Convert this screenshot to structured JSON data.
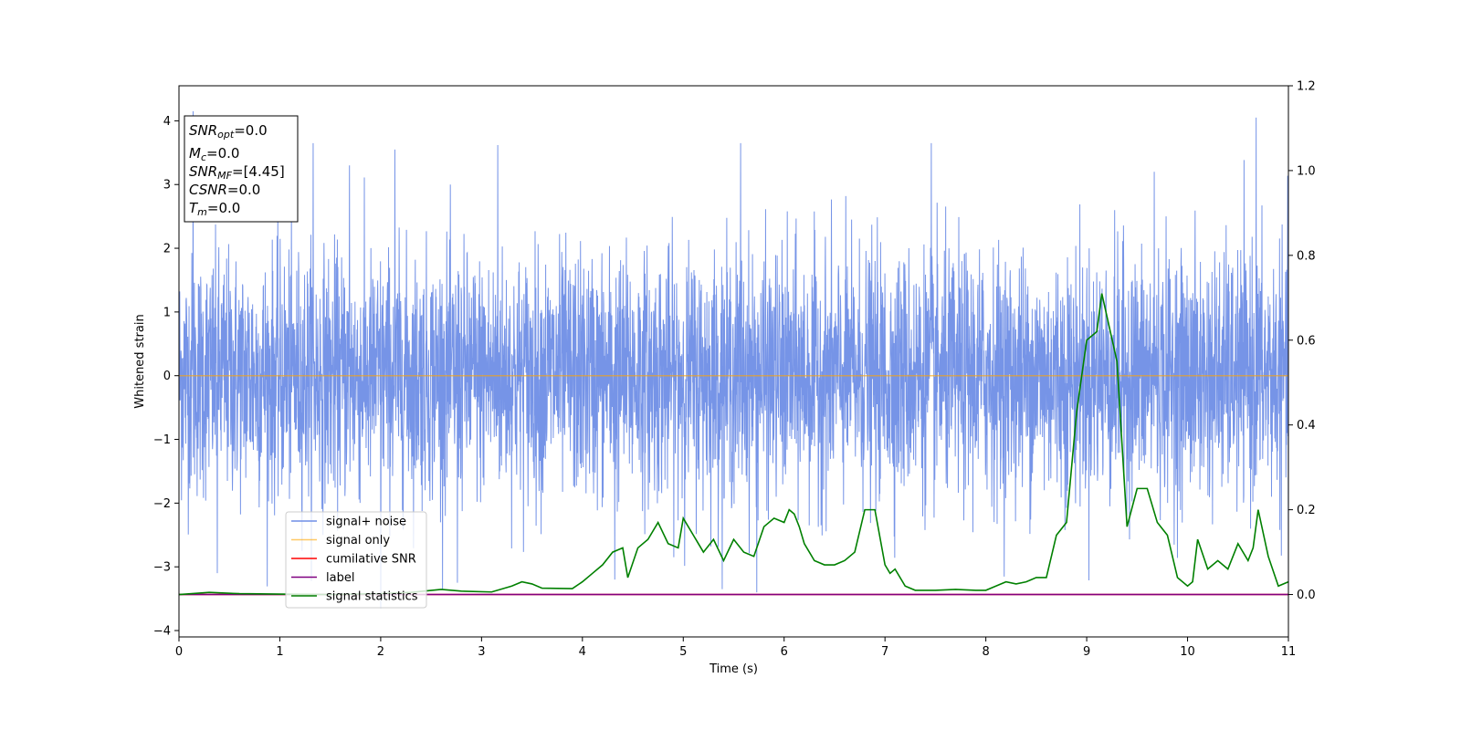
{
  "chart_data": {
    "type": "line",
    "xlabel": "Time (s)",
    "ylabel": "Whitened strain",
    "xlim": [
      0,
      11
    ],
    "ylim": [
      -4.1,
      4.55
    ],
    "y2lim": [
      -0.1,
      1.2
    ],
    "x_ticks": [
      0,
      1,
      2,
      3,
      4,
      5,
      6,
      7,
      8,
      9,
      10,
      11
    ],
    "y_ticks": [
      -4,
      -3,
      -2,
      -1,
      0,
      1,
      2,
      3,
      4
    ],
    "y2_ticks": [
      0.0,
      0.2,
      0.4,
      0.6,
      0.8,
      1.0,
      1.2
    ],
    "grid": false,
    "legend_position": "lower-left",
    "series": [
      {
        "name": "signal+ noise",
        "color": "#6f8ee6",
        "axis": "left",
        "kind": "noise",
        "x_range": [
          0,
          11
        ],
        "envelope_min": -3.65,
        "envelope_max": 4.15,
        "peaks": [
          {
            "x": 0.14,
            "y": 4.15
          },
          {
            "x": 1.33,
            "y": 3.65
          },
          {
            "x": 1.69,
            "y": 3.3
          },
          {
            "x": 2.14,
            "y": 3.55
          },
          {
            "x": 3.16,
            "y": 3.62
          },
          {
            "x": 5.57,
            "y": 3.65
          },
          {
            "x": 7.46,
            "y": 3.65
          },
          {
            "x": 10.68,
            "y": 4.05
          },
          {
            "x": 9.67,
            "y": 3.2
          },
          {
            "x": 2.0,
            "y": -3.65
          },
          {
            "x": 5.73,
            "y": -3.4
          },
          {
            "x": 2.76,
            "y": -3.25
          },
          {
            "x": 0.38,
            "y": -3.1
          },
          {
            "x": 4.32,
            "y": -3.2
          },
          {
            "x": 11.0,
            "y": -3.3
          }
        ]
      },
      {
        "name": "signal only",
        "color": "#ffa500",
        "axis": "left",
        "x": [
          0,
          11
        ],
        "y": [
          0,
          0
        ]
      },
      {
        "name": "cumilative SNR",
        "color": "#ff0000",
        "axis": "right",
        "x": [
          0,
          11
        ],
        "y": [
          0,
          0
        ]
      },
      {
        "name": "label",
        "color": "#800080",
        "axis": "right",
        "x": [
          0,
          11
        ],
        "y": [
          0,
          0
        ]
      },
      {
        "name": "signal statistics",
        "color": "#008000",
        "axis": "right",
        "x": [
          0.0,
          0.3,
          0.6,
          1.0,
          1.5,
          2.0,
          2.3,
          2.6,
          2.8,
          3.1,
          3.3,
          3.4,
          3.5,
          3.6,
          3.9,
          4.0,
          4.1,
          4.2,
          4.3,
          4.4,
          4.45,
          4.55,
          4.65,
          4.75,
          4.85,
          4.95,
          5.0,
          5.1,
          5.2,
          5.3,
          5.4,
          5.5,
          5.6,
          5.7,
          5.8,
          5.9,
          6.0,
          6.05,
          6.1,
          6.15,
          6.2,
          6.3,
          6.4,
          6.5,
          6.6,
          6.7,
          6.8,
          6.9,
          7.0,
          7.05,
          7.1,
          7.2,
          7.3,
          7.4,
          7.5,
          7.7,
          7.9,
          8.0,
          8.1,
          8.2,
          8.3,
          8.4,
          8.5,
          8.6,
          8.7,
          8.8,
          8.9,
          9.0,
          9.1,
          9.15,
          9.3,
          9.4,
          9.5,
          9.6,
          9.7,
          9.8,
          9.9,
          10.0,
          10.05,
          10.1,
          10.2,
          10.3,
          10.4,
          10.5,
          10.6,
          10.65,
          10.7,
          10.8,
          10.9,
          11.0
        ],
        "y": [
          0.0,
          0.005,
          0.002,
          0.001,
          0.0,
          0.002,
          0.005,
          0.012,
          0.008,
          0.006,
          0.02,
          0.03,
          0.025,
          0.015,
          0.014,
          0.03,
          0.05,
          0.07,
          0.1,
          0.11,
          0.04,
          0.11,
          0.13,
          0.17,
          0.12,
          0.11,
          0.18,
          0.14,
          0.1,
          0.13,
          0.08,
          0.13,
          0.1,
          0.09,
          0.16,
          0.18,
          0.17,
          0.2,
          0.19,
          0.16,
          0.12,
          0.08,
          0.07,
          0.07,
          0.08,
          0.1,
          0.2,
          0.2,
          0.07,
          0.05,
          0.06,
          0.02,
          0.01,
          0.01,
          0.01,
          0.012,
          0.01,
          0.01,
          0.02,
          0.03,
          0.025,
          0.03,
          0.04,
          0.04,
          0.14,
          0.17,
          0.43,
          0.6,
          0.62,
          0.71,
          0.55,
          0.16,
          0.25,
          0.25,
          0.17,
          0.14,
          0.04,
          0.02,
          0.03,
          0.13,
          0.06,
          0.08,
          0.06,
          0.12,
          0.08,
          0.11,
          0.2,
          0.09,
          0.02,
          0.03
        ]
      }
    ],
    "annotation": [
      {
        "name": "snr-opt",
        "base": "SNR",
        "sub": "opt",
        "value": "=0.0"
      },
      {
        "name": "mc",
        "base": "M",
        "sub": "c",
        "value": "=0.0"
      },
      {
        "name": "snr-mf",
        "base": "SNR",
        "sub": "MF",
        "value": "=[4.45]"
      },
      {
        "name": "csnr",
        "base": "CSNR",
        "sub": "",
        "value": "=0.0"
      },
      {
        "name": "tm",
        "base": "T",
        "sub": "m",
        "value": "=0.0"
      }
    ]
  }
}
